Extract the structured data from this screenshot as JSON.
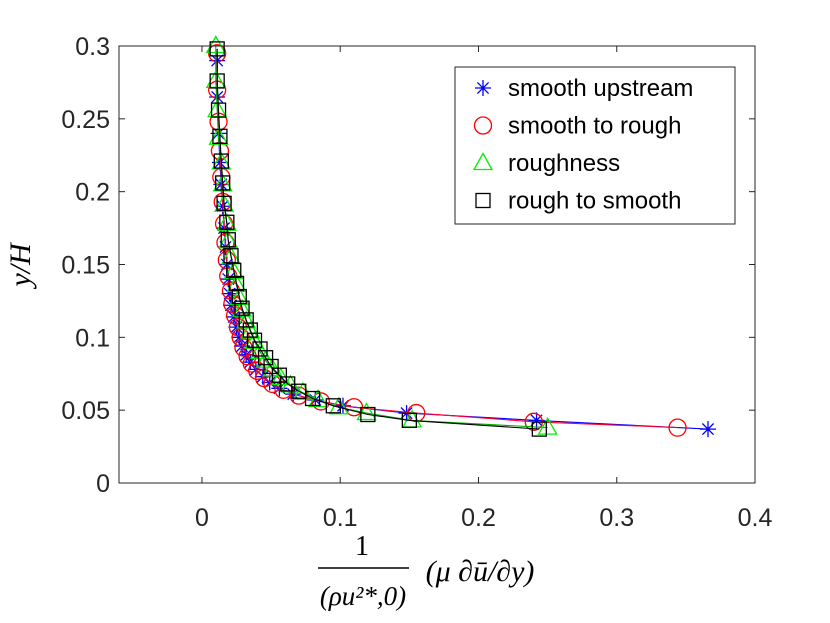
{
  "chart_data": {
    "type": "line",
    "title": "",
    "xlabel": {
      "numerator": "1",
      "denominator": "(ρu²*,0)",
      "factor": "(μ ∂ū/∂y)"
    },
    "ylabel": "y/H",
    "xlim": [
      -0.06,
      0.4
    ],
    "ylim": [
      0,
      0.3
    ],
    "xticks": [
      0,
      0.1,
      0.2,
      0.3,
      0.4
    ],
    "xtick_labels": [
      "0",
      "0.1",
      "0.2",
      "0.3",
      "0.4"
    ],
    "yticks": [
      0,
      0.05,
      0.1,
      0.15,
      0.2,
      0.25,
      0.3
    ],
    "ytick_labels": [
      "0",
      "0.05",
      "0.1",
      "0.15",
      "0.2",
      "0.25",
      "0.3"
    ],
    "legend_position": "top-right",
    "series": [
      {
        "name": "smooth upstream",
        "color": "#0000ff",
        "marker": "asterisk",
        "x": [
          0.366,
          0.242,
          0.148,
          0.102,
          0.082,
          0.066,
          0.056,
          0.049,
          0.044,
          0.039,
          0.035,
          0.032,
          0.029,
          0.027,
          0.025,
          0.023,
          0.021,
          0.02,
          0.019,
          0.018,
          0.017,
          0.016,
          0.015,
          0.014,
          0.013,
          0.012,
          0.011,
          0.011
        ],
        "y": [
          0.037,
          0.043,
          0.048,
          0.053,
          0.057,
          0.061,
          0.065,
          0.069,
          0.073,
          0.078,
          0.083,
          0.088,
          0.094,
          0.1,
          0.107,
          0.114,
          0.122,
          0.13,
          0.14,
          0.15,
          0.162,
          0.175,
          0.19,
          0.205,
          0.22,
          0.24,
          0.265,
          0.29
        ]
      },
      {
        "name": "smooth to rough",
        "color": "#ff0000",
        "marker": "circle",
        "x": [
          0.344,
          0.24,
          0.155,
          0.11,
          0.086,
          0.07,
          0.059,
          0.051,
          0.045,
          0.04,
          0.036,
          0.033,
          0.03,
          0.028,
          0.026,
          0.024,
          0.022,
          0.021,
          0.019,
          0.018,
          0.017,
          0.016,
          0.015,
          0.014,
          0.013,
          0.012,
          0.011,
          0.011
        ],
        "y": [
          0.038,
          0.042,
          0.048,
          0.052,
          0.056,
          0.06,
          0.064,
          0.068,
          0.072,
          0.077,
          0.082,
          0.087,
          0.093,
          0.1,
          0.107,
          0.115,
          0.123,
          0.132,
          0.142,
          0.153,
          0.165,
          0.178,
          0.193,
          0.21,
          0.228,
          0.248,
          0.27,
          0.295
        ]
      },
      {
        "name": "roughness",
        "color": "#00ee00",
        "marker": "triangle",
        "x": [
          0.25,
          0.152,
          0.119,
          0.099,
          0.084,
          0.073,
          0.064,
          0.057,
          0.051,
          0.046,
          0.042,
          0.038,
          0.035,
          0.032,
          0.029,
          0.027,
          0.025,
          0.023,
          0.021,
          0.019,
          0.018,
          0.016,
          0.015,
          0.014,
          0.012,
          0.011,
          0.01,
          0.01
        ],
        "y": [
          0.038,
          0.043,
          0.048,
          0.052,
          0.057,
          0.062,
          0.067,
          0.072,
          0.078,
          0.084,
          0.09,
          0.097,
          0.104,
          0.111,
          0.119,
          0.127,
          0.136,
          0.145,
          0.155,
          0.166,
          0.178,
          0.191,
          0.205,
          0.22,
          0.237,
          0.256,
          0.276,
          0.3
        ]
      },
      {
        "name": "rough to smooth",
        "color": "#000000",
        "marker": "square",
        "x": [
          0.244,
          0.15,
          0.12,
          0.095,
          0.08,
          0.07,
          0.062,
          0.056,
          0.05,
          0.046,
          0.042,
          0.038,
          0.035,
          0.032,
          0.029,
          0.027,
          0.025,
          0.023,
          0.021,
          0.019,
          0.018,
          0.016,
          0.015,
          0.014,
          0.013,
          0.012,
          0.011,
          0.011
        ],
        "y": [
          0.037,
          0.043,
          0.047,
          0.053,
          0.058,
          0.063,
          0.068,
          0.074,
          0.08,
          0.086,
          0.092,
          0.098,
          0.105,
          0.112,
          0.12,
          0.128,
          0.137,
          0.146,
          0.156,
          0.167,
          0.179,
          0.192,
          0.206,
          0.221,
          0.238,
          0.256,
          0.276,
          0.298
        ]
      }
    ]
  }
}
